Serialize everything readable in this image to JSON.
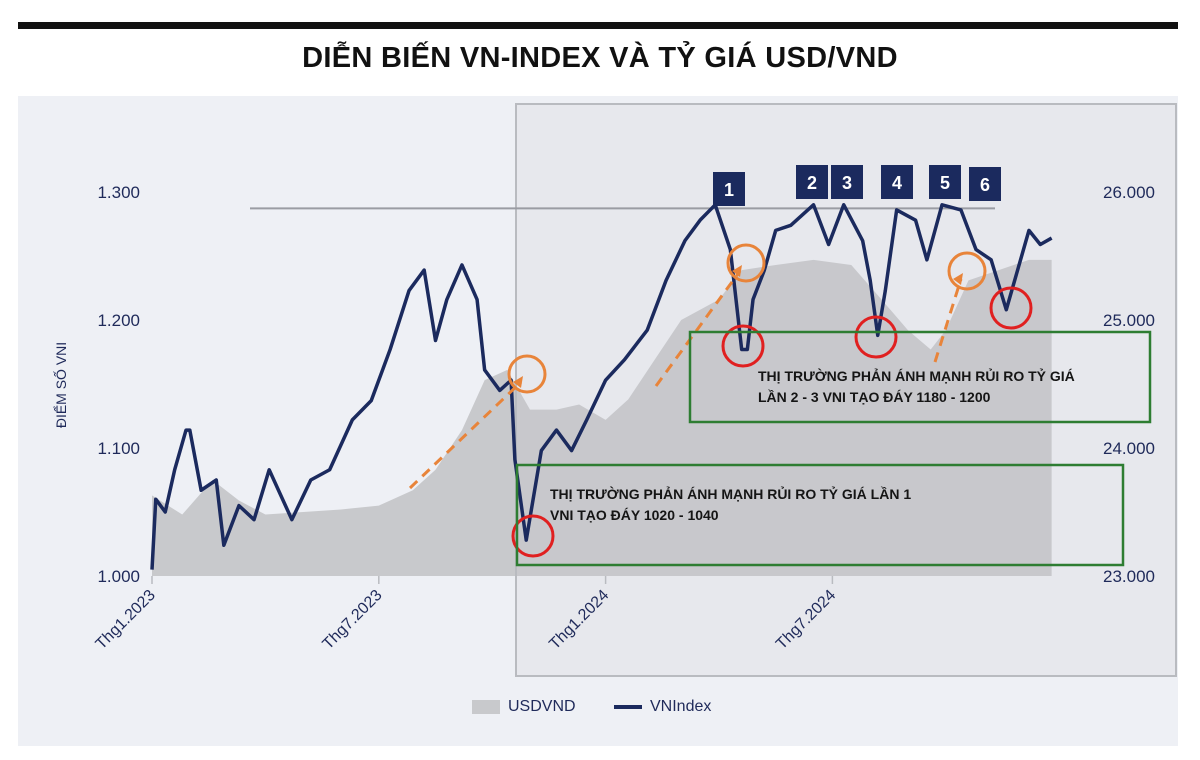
{
  "title": "DIỄN BIẾN VN-INDEX VÀ TỶ GIÁ USD/VND",
  "chart_data": {
    "type": "line+area",
    "ylabel": "ĐIỂM SỐ VNI",
    "ylim": [
      1000,
      1300
    ],
    "y_ticks": [
      "1.000",
      "1.100",
      "1.200",
      "1.300"
    ],
    "y2lim": [
      23000,
      26000
    ],
    "y2_ticks": [
      "23.000",
      "24.000",
      "25.000",
      "26.000"
    ],
    "x_ticks": [
      "Thg1.2023",
      "Thg7.2023",
      "Thg1.2024",
      "Thg7.2024"
    ],
    "x_unit": "months since Thg1.2023",
    "grid": false,
    "legend_position": "bottom",
    "colors": {
      "vnindex": "#1b2a5e",
      "usdvnd": "#c8c9cc",
      "resistance": "#9a9ca3",
      "bottom_circle": "#e02020",
      "fx_circle": "#e8843a",
      "box": "#2e7d32"
    },
    "series": [
      {
        "name": "USDVND",
        "type": "area",
        "axis": "right",
        "x": [
          0,
          0.8,
          1.6,
          2.3,
          3,
          5,
          6,
          6.9,
          7.5,
          8.2,
          8.8,
          9.4,
          10,
          10.7,
          11.3,
          12,
          12.6,
          13.3,
          14,
          15,
          15.6,
          16.5,
          17.5,
          18.5,
          19.3,
          20,
          20.6,
          21,
          21.6,
          22.4,
          23.2,
          23.8
        ],
        "values": [
          23630,
          23480,
          23750,
          23590,
          23480,
          23520,
          23550,
          23670,
          23830,
          24140,
          24530,
          24610,
          24300,
          24300,
          24340,
          24220,
          24380,
          24690,
          25000,
          25160,
          25390,
          25430,
          25470,
          25430,
          25160,
          24920,
          24770,
          24920,
          25310,
          25390,
          25470,
          25470
        ]
      },
      {
        "name": "VNIndex",
        "type": "line",
        "axis": "left",
        "x": [
          0,
          0.1,
          0.35,
          0.6,
          0.9,
          1.0,
          1.3,
          1.7,
          1.9,
          2.3,
          2.7,
          3.1,
          3.7,
          4.2,
          4.7,
          5.3,
          5.8,
          6.3,
          6.8,
          7.2,
          7.5,
          7.8,
          8.2,
          8.6,
          8.8,
          9.2,
          9.5,
          9.6,
          9.9,
          10.3,
          10.7,
          11.1,
          11.5,
          12.0,
          12.5,
          13.1,
          13.6,
          14.1,
          14.5,
          14.9,
          15.3,
          15.6,
          15.75,
          15.9,
          16.2,
          16.5,
          16.9,
          17.5,
          17.9,
          18.3,
          18.8,
          19.0,
          19.2,
          19.4,
          19.7,
          20.2,
          20.5,
          20.9,
          21.4,
          21.8,
          22.2,
          22.6,
          22.9,
          23.2,
          23.5,
          23.8
        ],
        "values": [
          1005,
          1060,
          1050,
          1083,
          1114,
          1114,
          1067,
          1075,
          1024,
          1055,
          1044,
          1083,
          1044,
          1075,
          1083,
          1122,
          1137,
          1177,
          1223,
          1239,
          1184,
          1216,
          1243,
          1216,
          1161,
          1145,
          1153,
          1091,
          1028,
          1098,
          1114,
          1098,
          1122,
          1153,
          1169,
          1192,
          1231,
          1262,
          1278,
          1290,
          1255,
          1177,
          1177,
          1216,
          1239,
          1270,
          1274,
          1290,
          1259,
          1290,
          1262,
          1231,
          1188,
          1223,
          1286,
          1278,
          1247,
          1290,
          1286,
          1255,
          1247,
          1208,
          1239,
          1270,
          1259,
          1264
        ]
      }
    ],
    "resistance_level": 1295,
    "peak_badges": [
      "1",
      "2",
      "3",
      "4",
      "5",
      "6"
    ],
    "annotations": [
      {
        "lines": [
          "THỊ TRƯỜNG PHẢN ÁNH MẠNH RỦI RO TỶ GIÁ LẦN 1",
          "VNI TẠO ĐÁY 1020 - 1040"
        ]
      },
      {
        "lines": [
          "THỊ TRƯỜNG PHẢN ÁNH MẠNH RỦI RO TỶ GIÁ",
          "LẦN 2 - 3  VNI TẠO ĐÁY 1180 - 1200"
        ]
      }
    ]
  },
  "legend": {
    "usdvnd": "USDVND",
    "vnindex": "VNIndex"
  }
}
